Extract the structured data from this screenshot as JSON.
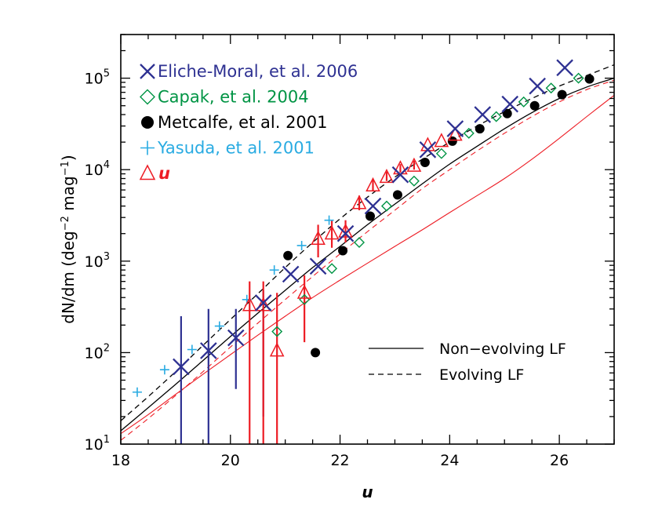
{
  "chart_data": {
    "type": "scatter",
    "title": "",
    "xlabel": "u",
    "ylabel": "dN/dm (deg",
    "ylabel_sup1": "−2",
    "ylabel_mid": " mag",
    "ylabel_sup2": "−1",
    "ylabel_end": ")",
    "xlim": [
      18,
      27
    ],
    "ylim": [
      10,
      300000
    ],
    "yscale": "log",
    "x_ticks": [
      18,
      20,
      22,
      24,
      26
    ],
    "x_tick_labels": [
      "18",
      "20",
      "22",
      "24",
      "26"
    ],
    "y_ticks": [
      10,
      100,
      1000,
      10000,
      100000
    ],
    "y_tick_labels": [
      {
        "base": "10",
        "exp": "1"
      },
      {
        "base": "10",
        "exp": "2"
      },
      {
        "base": "10",
        "exp": "3"
      },
      {
        "base": "10",
        "exp": "4"
      },
      {
        "base": "10",
        "exp": "5"
      }
    ],
    "grid": false,
    "legend_position": "top-left",
    "series": [
      {
        "name": "Eliche-Moral, et al. 2006",
        "color": "#2e3192",
        "marker": "x",
        "x": [
          19.1,
          19.6,
          20.1,
          20.6,
          21.1,
          21.6,
          22.1,
          22.6,
          23.1,
          23.6,
          24.1,
          24.6,
          25.1,
          25.6,
          26.1
        ],
        "y": [
          70,
          105,
          145,
          350,
          720,
          880,
          2000,
          4000,
          8800,
          16500,
          28000,
          40000,
          52000,
          82000,
          130000
        ],
        "yerr_low": [
          10,
          10,
          40,
          20,
          null,
          null,
          null,
          null,
          null,
          null,
          null,
          null,
          null,
          null,
          null
        ],
        "yerr_high": [
          250,
          300,
          300,
          480,
          null,
          null,
          null,
          null,
          null,
          null,
          null,
          null,
          null,
          null,
          null
        ]
      },
      {
        "name": "Capak, et al. 2004",
        "color": "#009444",
        "marker": "diamond",
        "x": [
          20.85,
          21.35,
          21.85,
          22.35,
          22.85,
          23.35,
          23.85,
          24.35,
          24.85,
          25.35,
          25.85,
          26.35
        ],
        "y": [
          170,
          380,
          830,
          1600,
          4000,
          7500,
          15000,
          25000,
          38000,
          55000,
          78000,
          100000
        ]
      },
      {
        "name": "Metcalfe, et al. 2001",
        "color": "#000000",
        "marker": "circle",
        "x": [
          21.05,
          21.55,
          22.05,
          22.55,
          23.05,
          23.55,
          24.05,
          24.55,
          25.05,
          25.55,
          26.05,
          26.55
        ],
        "y": [
          1150,
          100,
          1300,
          3100,
          5300,
          12000,
          20500,
          28000,
          41000,
          50000,
          66000,
          98000
        ]
      },
      {
        "name": "Yasuda, et al. 2001",
        "color": "#29abe2",
        "marker": "plus",
        "x": [
          18.3,
          18.8,
          19.3,
          19.8,
          20.3,
          20.8,
          21.3,
          21.8
        ],
        "y": [
          37,
          65,
          108,
          195,
          380,
          800,
          1480,
          2800
        ]
      },
      {
        "name": "u",
        "name_prefix": "△",
        "color": "#ed1c24",
        "marker": "triangle",
        "x": [
          20.35,
          20.6,
          20.85,
          21.35,
          21.6,
          21.85,
          22.1,
          22.35,
          22.6,
          22.85,
          23.1,
          23.35,
          23.6,
          23.85,
          24.1
        ],
        "y": [
          330,
          330,
          105,
          450,
          1750,
          2000,
          2100,
          4300,
          6700,
          8300,
          10300,
          11000,
          18500,
          20500,
          24000
        ],
        "yerr_low": [
          10,
          10,
          10,
          130,
          1100,
          1400,
          1600,
          3600,
          5900,
          7500,
          9300,
          10000,
          null,
          null,
          null
        ],
        "yerr_high": [
          600,
          600,
          450,
          700,
          2500,
          2800,
          2800,
          5200,
          7800,
          9500,
          11500,
          12500,
          null,
          null,
          null
        ]
      }
    ],
    "model_curves": [
      {
        "name": "Non-evolving LF",
        "legend_label": "Non−evolving LF",
        "color": "#000000",
        "dash": "solid",
        "x": [
          18,
          18.5,
          19,
          19.5,
          20,
          20.5,
          21,
          21.5,
          22,
          22.5,
          23,
          23.5,
          24,
          24.5,
          25,
          25.5,
          26,
          26.5,
          27
        ],
        "y": [
          14,
          25,
          45,
          82,
          150,
          270,
          480,
          850,
          1450,
          2500,
          4200,
          7000,
          11500,
          18000,
          28000,
          42000,
          60000,
          80000,
          100000
        ]
      },
      {
        "name": "Evolving LF",
        "legend_label": "Evolving LF",
        "color": "#000000",
        "dash": "dashed",
        "x": [
          18,
          18.5,
          19,
          19.5,
          20,
          20.5,
          21,
          21.5,
          22,
          22.5,
          23,
          23.5,
          24,
          24.5,
          25,
          25.5,
          26,
          26.5,
          27
        ],
        "y": [
          18,
          33,
          62,
          120,
          230,
          440,
          850,
          1600,
          2900,
          5000,
          8300,
          13000,
          20000,
          30000,
          43000,
          60000,
          82000,
          107000,
          140000
        ]
      },
      {
        "name": "Non-evolving LF (red)",
        "color": "#ed1c24",
        "dash": "solid",
        "x": [
          18,
          18.5,
          19,
          19.5,
          20,
          20.5,
          21,
          21.5,
          22,
          22.5,
          23,
          23.5,
          24,
          24.5,
          25,
          25.5,
          26,
          26.5,
          27
        ],
        "y": [
          13,
          21,
          35,
          58,
          95,
          155,
          250,
          400,
          620,
          950,
          1450,
          2200,
          3400,
          5200,
          8000,
          13000,
          22000,
          38000,
          65000
        ]
      },
      {
        "name": "Evolving LF (red)",
        "color": "#ed1c24",
        "dash": "dashed",
        "x": [
          18,
          18.5,
          19,
          19.5,
          20,
          20.5,
          21,
          21.5,
          22,
          22.5,
          23,
          23.5,
          24,
          24.5,
          25,
          25.5,
          26,
          26.5,
          27
        ],
        "y": [
          11,
          19,
          34,
          62,
          115,
          210,
          380,
          680,
          1200,
          2100,
          3600,
          6200,
          10000,
          16000,
          25000,
          38000,
          55000,
          75000,
          95000
        ]
      }
    ]
  }
}
